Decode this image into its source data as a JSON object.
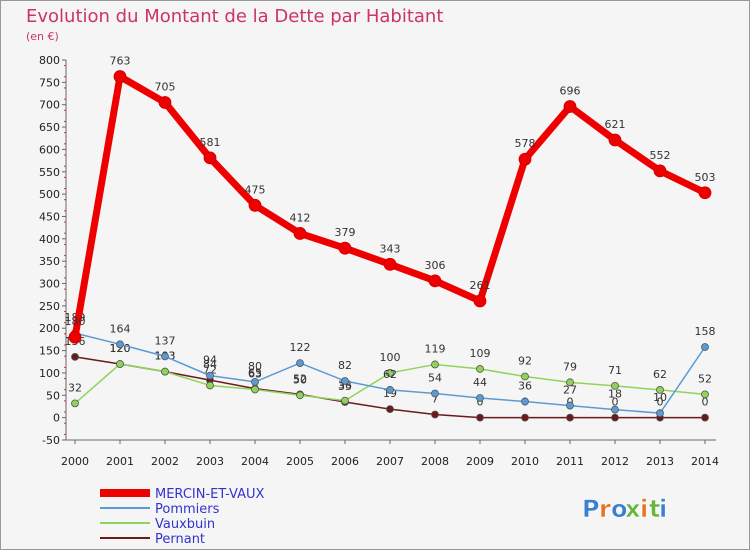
{
  "chart_data": {
    "type": "line",
    "title": "Evolution du Montant de la Dette par Habitant",
    "subtitle": "(en €)",
    "ylim": [
      -50,
      800
    ],
    "yticks": [
      -50,
      0,
      50,
      100,
      150,
      200,
      250,
      300,
      350,
      400,
      450,
      500,
      550,
      600,
      650,
      700,
      750,
      800
    ],
    "x": [
      "2000",
      "2001",
      "2002",
      "2003",
      "2004",
      "2005",
      "2006",
      "2007",
      "2008",
      "2009",
      "2010",
      "2011",
      "2012",
      "2013",
      "2014"
    ],
    "grid": false,
    "legend_position": "bottom-left",
    "series": [
      {
        "name": "MERCIN-ET-VAUX",
        "color": "#ee0000",
        "values": [
          180,
          763,
          705,
          581,
          475,
          412,
          379,
          343,
          306,
          261,
          578,
          696,
          621,
          552,
          503
        ]
      },
      {
        "name": "Pommiers",
        "color": "#5b9bd5",
        "values": [
          189,
          164,
          137,
          94,
          80,
          122,
          82,
          62,
          54,
          44,
          36,
          27,
          18,
          10,
          158
        ]
      },
      {
        "name": "Vauxbuin",
        "color": "#8fd45a",
        "values": [
          32,
          120,
          103,
          72,
          63,
          50,
          38,
          100,
          119,
          109,
          92,
          79,
          71,
          62,
          52
        ]
      },
      {
        "name": "Pernant",
        "color": "#6b1a1a",
        "values": [
          136,
          120,
          103,
          84,
          65,
          52,
          35,
          19,
          7,
          0,
          0,
          0,
          0,
          0,
          0
        ]
      }
    ]
  },
  "logo": {
    "text": "Proxiti"
  }
}
